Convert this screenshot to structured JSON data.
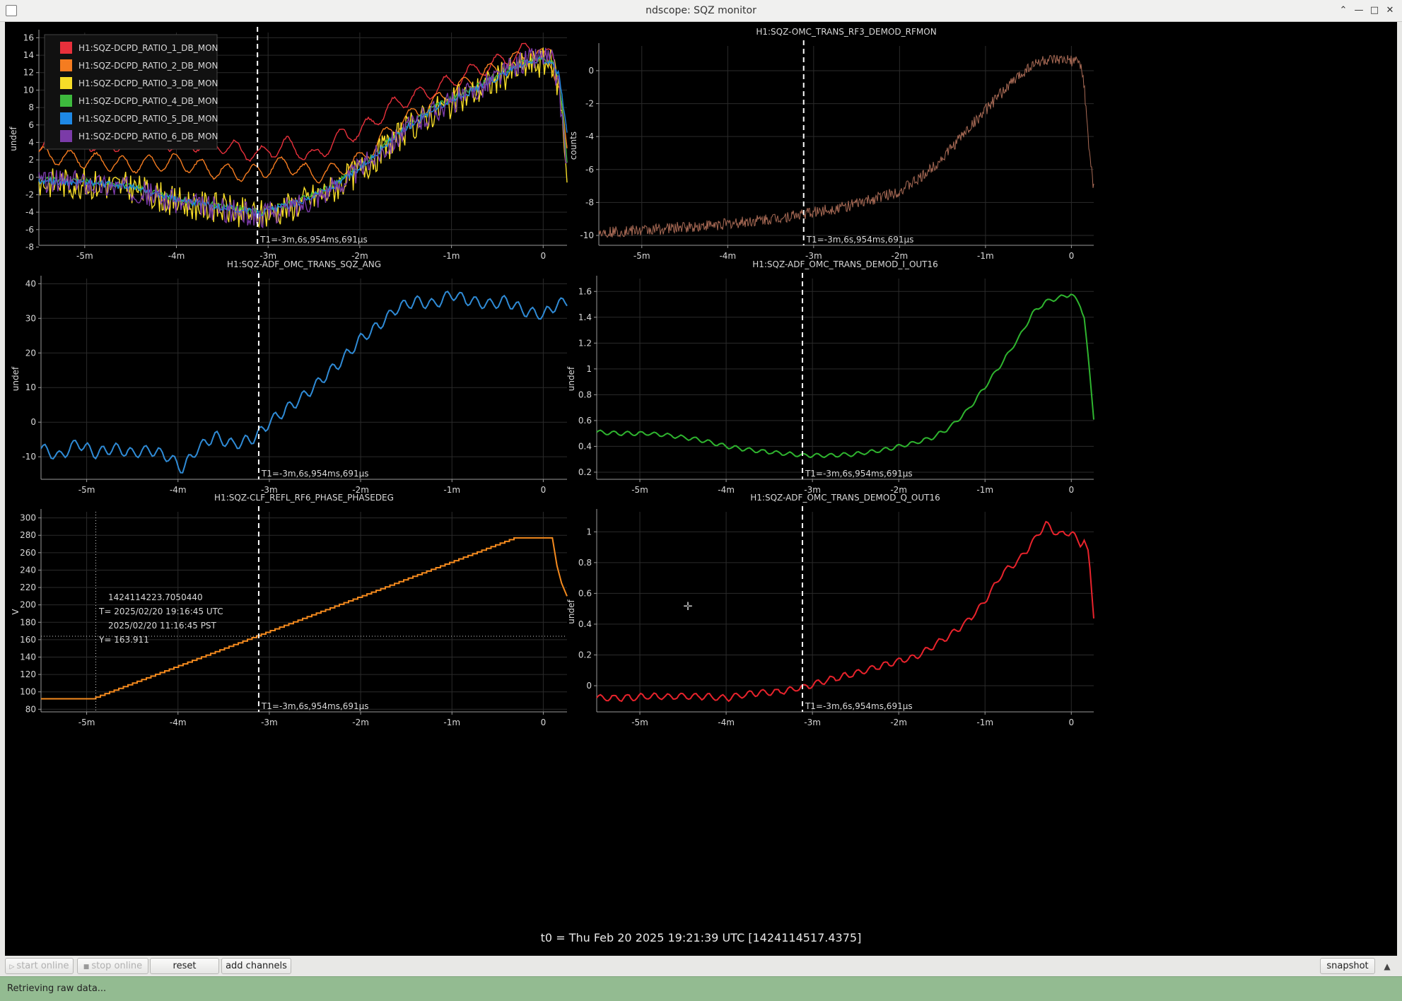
{
  "window": {
    "title": "ndscope: SQZ monitor"
  },
  "toolbar": {
    "start_online": "start online",
    "stop_online": "stop online",
    "reset": "reset",
    "add_channels": "add channels",
    "snapshot": "snapshot"
  },
  "status": {
    "text": "Retrieving raw data..."
  },
  "t0_label": "t0 = Thu Feb 20 2025 19:21:39 UTC [1424114517.4375]",
  "cursor_label": "T1=-3m,6s,954ms,691µs",
  "crosshair": {
    "gps": "1424114223.7050440",
    "utc": "T= 2025/02/20 19:16:45 UTC",
    "pst": "2025/02/20 11:16:45 PST",
    "y": "Y= 163.911"
  },
  "colors": {
    "background": "#000000",
    "cursor_line": "#ffffff",
    "ratio": [
      "#e8303b",
      "#f57c20",
      "#f7dd28",
      "#3dba3d",
      "#1e88e5",
      "#7b3ba8"
    ],
    "sqz_ang": "#2f8bd6",
    "rf3": "#a86a55",
    "demod_i": "#2fb52f",
    "phase": "#f48a1e",
    "demod_q": "#e8232c"
  },
  "chart_data": [
    {
      "type": "line",
      "title": "",
      "ylabel": "undef",
      "xlabel": "",
      "xlim": [
        -5.5,
        0.26
      ],
      "ylim": [
        -7.8,
        16.6
      ],
      "yticks": [
        -8,
        -6,
        -4,
        -2,
        0,
        2,
        4,
        6,
        8,
        10,
        12,
        14,
        16
      ],
      "xticks": [
        -5,
        -4,
        -3,
        -2,
        -1,
        0
      ],
      "xtick_labels": [
        "-5m",
        "-4m",
        "-3m",
        "-2m",
        "-1m",
        "0"
      ],
      "cursor_x": -3.116,
      "legend": "top-left",
      "series": [
        {
          "name": "H1:SQZ-DCPD_RATIO_1_DB_MON",
          "x": [
            -5.5,
            -5.2,
            -4.8,
            -4.4,
            -4,
            -3.6,
            -3.1,
            -2.8,
            -2.5,
            -2.2,
            -2,
            -1.6,
            -1.2,
            -0.8,
            -0.4,
            -0.2,
            0,
            0.1,
            0.18,
            0.26
          ],
          "values": [
            4,
            5.1,
            3.4,
            4.6,
            3.8,
            4,
            2.5,
            3.8,
            2.2,
            4.8,
            5.2,
            8.5,
            10,
            12,
            13.5,
            14.6,
            14.2,
            13.5,
            11,
            3.8
          ]
        },
        {
          "name": "H1:SQZ-DCPD_RATIO_2_DB_MON",
          "x": [
            -5.5,
            -5,
            -4.5,
            -4,
            -3.6,
            -3.2,
            -2.8,
            -2.5,
            -2.2,
            -2,
            -1.6,
            -1.2,
            -0.8,
            -0.4,
            -0.2,
            0,
            0.1,
            0.18,
            0.26
          ],
          "values": [
            2.6,
            2,
            1.4,
            1.8,
            0.8,
            0.4,
            1.6,
            0.2,
            1,
            2,
            6,
            8.5,
            11,
            13,
            14,
            13.8,
            13,
            10.5,
            2.5
          ]
        },
        {
          "name": "H1:SQZ-DCPD_RATIO_3_DB_MON",
          "x": [
            -5.5,
            -5,
            -4.5,
            -4,
            -3.5,
            -3.1,
            -2.7,
            -2.3,
            -2,
            -1.6,
            -1.2,
            -0.8,
            -0.4,
            -0.2,
            0,
            0.1,
            0.18,
            0.26
          ],
          "values": [
            -0.6,
            -0.7,
            -1.2,
            -2.8,
            -3.6,
            -4.4,
            -3.2,
            -1.4,
            0.8,
            4.5,
            7.5,
            9.5,
            11.8,
            12.8,
            13.2,
            12.8,
            10,
            0.5
          ]
        },
        {
          "name": "H1:SQZ-DCPD_RATIO_4_DB_MON",
          "x": [
            -5.5,
            -5,
            -4.5,
            -4,
            -3.5,
            -3.1,
            -2.7,
            -2.3,
            -2,
            -1.6,
            -1.2,
            -0.8,
            -0.4,
            -0.2,
            0,
            0.1,
            0.18,
            0.26
          ],
          "values": [
            -0.3,
            -0.5,
            -1,
            -2.5,
            -3.3,
            -4,
            -2.8,
            -1,
            1.2,
            5,
            8,
            10,
            12.2,
            13.2,
            13.6,
            13.2,
            10.8,
            2
          ]
        },
        {
          "name": "H1:SQZ-DCPD_RATIO_5_DB_MON",
          "x": [
            -5.5,
            -5,
            -4.5,
            -4,
            -3.5,
            -3.1,
            -2.7,
            -2.3,
            -2,
            -1.6,
            -1.2,
            -0.8,
            -0.4,
            -0.2,
            0,
            0.1,
            0.18,
            0.26
          ],
          "values": [
            -0.4,
            -0.6,
            -1.1,
            -2.6,
            -3.4,
            -4.1,
            -3,
            -1.2,
            1,
            4.8,
            7.8,
            9.8,
            12,
            13,
            13.5,
            13.3,
            11.5,
            4.8
          ]
        },
        {
          "name": "H1:SQZ-DCPD_RATIO_6_DB_MON",
          "x": [
            -5.5,
            -5,
            -4.5,
            -4,
            -3.5,
            -3.1,
            -2.7,
            -2.3,
            -2,
            -1.6,
            -1.2,
            -0.8,
            -0.4,
            -0.2,
            0,
            0.1,
            0.18,
            0.26
          ],
          "values": [
            -0.5,
            -0.6,
            -1.3,
            -2.9,
            -3.7,
            -4.5,
            -3.3,
            -1.3,
            0.9,
            4.6,
            7.6,
            9.6,
            12.2,
            13.4,
            14,
            13.4,
            9.5,
            1
          ]
        }
      ]
    },
    {
      "type": "line",
      "title": "H1:SQZ-OMC_TRANS_RF3_DEMOD_RFMON",
      "ylabel": "counts",
      "xlabel": "",
      "xlim": [
        -5.5,
        0.26
      ],
      "ylim": [
        -10.6,
        1.5
      ],
      "yticks": [
        -10,
        -8,
        -6,
        -4,
        -2,
        0
      ],
      "xticks": [
        -5,
        -4,
        -3,
        -2,
        -1,
        0
      ],
      "xtick_labels": [
        "-5m",
        "-4m",
        "-3m",
        "-2m",
        "-1m",
        "0"
      ],
      "cursor_x": -3.116,
      "series": [
        {
          "name": "H1:SQZ-OMC_TRANS_RF3_DEMOD_RFMON",
          "x": [
            -5.5,
            -5,
            -4.5,
            -4,
            -3.5,
            -3,
            -2.5,
            -2,
            -1.75,
            -1.5,
            -1.25,
            -1,
            -0.75,
            -0.5,
            -0.35,
            -0.2,
            0,
            0.1,
            0.15,
            0.2,
            0.26
          ],
          "values": [
            -9.8,
            -9.7,
            -9.5,
            -9.3,
            -9,
            -8.6,
            -8.1,
            -7.3,
            -6.5,
            -5.3,
            -3.8,
            -2.4,
            -1,
            0.2,
            0.6,
            0.6,
            0.6,
            0.5,
            -0.9,
            -4.5,
            -7.2
          ]
        }
      ]
    },
    {
      "type": "line",
      "title": "H1:SQZ-ADF_OMC_TRANS_SQZ_ANG",
      "ylabel": "undef",
      "xlabel": "",
      "xlim": [
        -5.5,
        0.26
      ],
      "ylim": [
        -16.5,
        41.5
      ],
      "yticks": [
        -10,
        0,
        10,
        20,
        30,
        40
      ],
      "xticks": [
        -5,
        -4,
        -3,
        -2,
        -1,
        0
      ],
      "xtick_labels": [
        "-5m",
        "-4m",
        "-3m",
        "-2m",
        "-1m",
        "0"
      ],
      "cursor_x": -3.116,
      "series": [
        {
          "name": "H1:SQZ-ADF_OMC_TRANS_SQZ_ANG",
          "x": [
            -5.5,
            -5.3,
            -5.1,
            -4.9,
            -4.7,
            -4.5,
            -4.3,
            -4.1,
            -3.95,
            -3.8,
            -3.6,
            -3.4,
            -3.2,
            -3.1,
            -3,
            -2.8,
            -2.6,
            -2.4,
            -2.2,
            -2,
            -1.8,
            -1.6,
            -1.4,
            -1.2,
            -1,
            -0.8,
            -0.6,
            -0.4,
            -0.2,
            0,
            0.15,
            0.26
          ],
          "values": [
            -7.5,
            -10,
            -6,
            -9,
            -7.5,
            -9,
            -8,
            -10,
            -13.5,
            -8,
            -4,
            -6.5,
            -5,
            -3,
            0,
            4,
            8,
            13,
            18,
            24,
            28,
            33,
            35,
            34,
            37,
            35,
            34,
            35,
            32,
            31,
            34,
            35
          ]
        }
      ]
    },
    {
      "type": "line",
      "title": "H1:SQZ-ADF_OMC_TRANS_DEMOD_I_OUT16",
      "ylabel": "undef",
      "xlabel": "",
      "xlim": [
        -5.5,
        0.26
      ],
      "ylim": [
        0.145,
        1.7
      ],
      "yticks": [
        0.2,
        0.4,
        0.6,
        0.8,
        1,
        1.2,
        1.4,
        1.6
      ],
      "xticks": [
        -5,
        -4,
        -3,
        -2,
        -1,
        0
      ],
      "xtick_labels": [
        "-5m",
        "-4m",
        "-3m",
        "-2m",
        "-1m",
        "0"
      ],
      "cursor_x": -3.116,
      "series": [
        {
          "name": "H1:SQZ-ADF_OMC_TRANS_DEMOD_I_OUT16",
          "x": [
            -5.5,
            -5.2,
            -4.9,
            -4.6,
            -4.3,
            -4,
            -3.7,
            -3.4,
            -3.1,
            -2.8,
            -2.5,
            -2.2,
            -2,
            -1.8,
            -1.6,
            -1.4,
            -1.2,
            -1,
            -0.8,
            -0.6,
            -0.45,
            -0.3,
            -0.15,
            0,
            0.1,
            0.15,
            0.2,
            0.26
          ],
          "values": [
            0.51,
            0.5,
            0.5,
            0.48,
            0.45,
            0.4,
            0.37,
            0.35,
            0.33,
            0.33,
            0.34,
            0.37,
            0.4,
            0.43,
            0.47,
            0.55,
            0.68,
            0.86,
            1.05,
            1.25,
            1.43,
            1.52,
            1.55,
            1.58,
            1.5,
            1.4,
            1.05,
            0.62
          ]
        }
      ]
    },
    {
      "type": "line",
      "title": "H1:SQZ-CLF_REFL_RF6_PHASE_PHASEDEG",
      "ylabel": "V",
      "xlabel": "",
      "xlim": [
        -5.5,
        0.26
      ],
      "ylim": [
        77,
        307
      ],
      "yticks": [
        80,
        100,
        120,
        140,
        160,
        180,
        200,
        220,
        240,
        260,
        280,
        300
      ],
      "xticks": [
        -5,
        -4,
        -3,
        -2,
        -1,
        0
      ],
      "xtick_labels": [
        "-5m",
        "-4m",
        "-3m",
        "-2m",
        "-1m",
        "0"
      ],
      "cursor_x": -3.116,
      "crosshair_x": -4.9,
      "crosshair_y": 163.911,
      "series": [
        {
          "name": "H1:SQZ-CLF_REFL_RF6_PHASE_PHASEDEG",
          "x": [
            -5.5,
            -4.9,
            -0.27,
            0.1,
            0.15,
            0.2,
            0.26
          ],
          "values": [
            92,
            92,
            277,
            277,
            245,
            225,
            210
          ]
        }
      ]
    },
    {
      "type": "line",
      "title": "H1:SQZ-ADF_OMC_TRANS_DEMOD_Q_OUT16",
      "ylabel": "undef",
      "xlabel": "",
      "xlim": [
        -5.5,
        0.26
      ],
      "ylim": [
        -0.17,
        1.13
      ],
      "yticks": [
        0,
        0.2,
        0.4,
        0.6,
        0.8,
        1
      ],
      "xticks": [
        -5,
        -4,
        -3,
        -2,
        -1,
        0
      ],
      "xtick_labels": [
        "-5m",
        "-4m",
        "-3m",
        "-2m",
        "-1m",
        "0"
      ],
      "cursor_x": -3.116,
      "series": [
        {
          "name": "H1:SQZ-ADF_OMC_TRANS_DEMOD_Q_OUT16",
          "x": [
            -5.5,
            -5.2,
            -4.9,
            -4.6,
            -4.3,
            -4,
            -3.7,
            -3.4,
            -3.1,
            -2.8,
            -2.5,
            -2.2,
            -2,
            -1.8,
            -1.6,
            -1.4,
            -1.2,
            -1,
            -0.8,
            -0.6,
            -0.45,
            -0.3,
            -0.15,
            0,
            0.1,
            0.15,
            0.2,
            0.26
          ],
          "values": [
            -0.08,
            -0.08,
            -0.07,
            -0.07,
            -0.07,
            -0.08,
            -0.05,
            -0.04,
            -0.01,
            0.04,
            0.08,
            0.13,
            0.16,
            0.19,
            0.26,
            0.33,
            0.42,
            0.55,
            0.73,
            0.82,
            0.93,
            1.05,
            0.98,
            1,
            0.92,
            0.95,
            0.85,
            0.45
          ]
        }
      ]
    }
  ]
}
